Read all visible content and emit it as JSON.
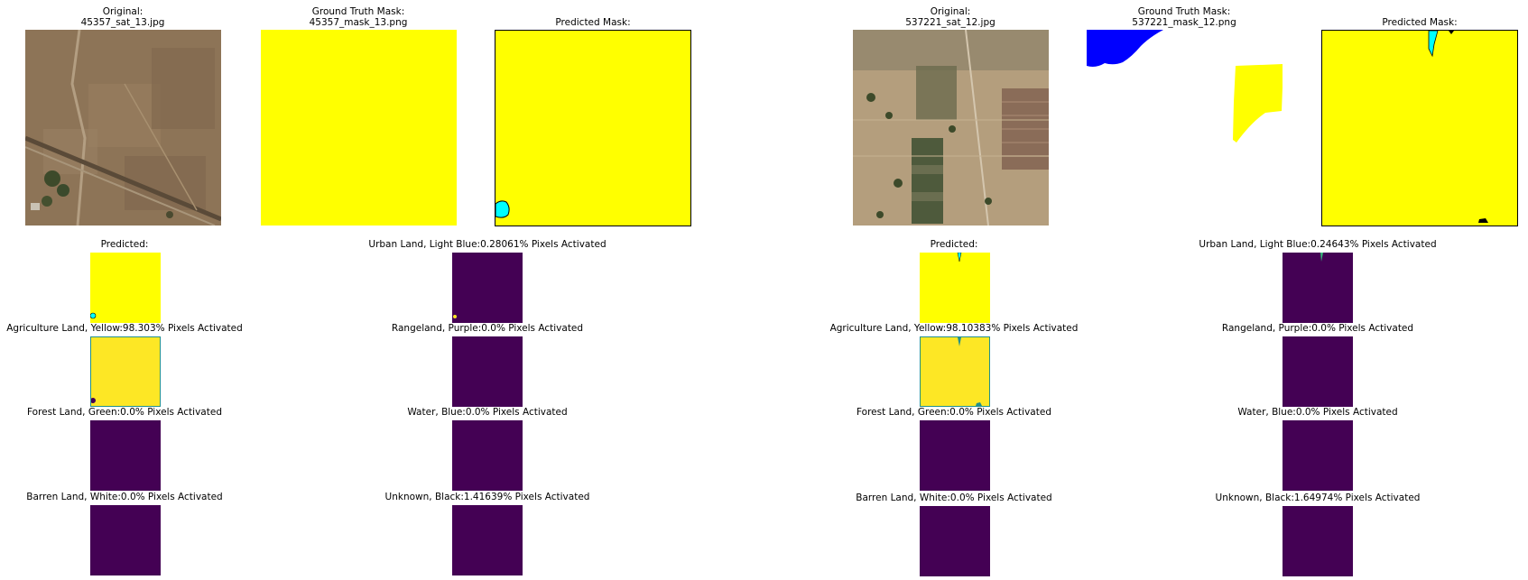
{
  "colors": {
    "agriculture": "#ffff00",
    "urban": "#00ffff",
    "water": "#0000ff",
    "viridis_low": "#440154",
    "viridis_high": "#fde725"
  },
  "left": {
    "original": {
      "title": "Original:",
      "file": "45357_sat_13.jpg"
    },
    "ground_truth": {
      "title": "Ground Truth Mask:",
      "file": "45357_mask_13.png"
    },
    "predicted_mask": {
      "title": "Predicted Mask:"
    },
    "predicted_small": {
      "title": "Predicted:"
    },
    "classes": {
      "urban": {
        "label": "Urban Land, Light Blue:0.28061% Pixels Activated",
        "activated_percent": 0.28061
      },
      "agriculture": {
        "label": "Agriculture Land, Yellow:98.303% Pixels Activated",
        "activated_percent": 98.303
      },
      "rangeland": {
        "label": "Rangeland, Purple:0.0% Pixels Activated",
        "activated_percent": 0.0
      },
      "forest": {
        "label": "Forest Land, Green:0.0% Pixels Activated",
        "activated_percent": 0.0
      },
      "water": {
        "label": "Water, Blue:0.0% Pixels Activated",
        "activated_percent": 0.0
      },
      "barren": {
        "label": "Barren Land, White:0.0% Pixels Activated",
        "activated_percent": 0.0
      },
      "unknown": {
        "label": "Unknown, Black:1.41639% Pixels Activated",
        "activated_percent": 1.41639
      }
    }
  },
  "right": {
    "original": {
      "title": "Original:",
      "file": "537221_sat_12.jpg"
    },
    "ground_truth": {
      "title": "Ground Truth Mask:",
      "file": "537221_mask_12.png"
    },
    "predicted_mask": {
      "title": "Predicted Mask:"
    },
    "predicted_small": {
      "title": "Predicted:"
    },
    "classes": {
      "urban": {
        "label": "Urban Land, Light Blue:0.24643% Pixels Activated",
        "activated_percent": 0.24643
      },
      "agriculture": {
        "label": "Agriculture Land, Yellow:98.10383% Pixels Activated",
        "activated_percent": 98.10383
      },
      "rangeland": {
        "label": "Rangeland, Purple:0.0% Pixels Activated",
        "activated_percent": 0.0
      },
      "forest": {
        "label": "Forest Land, Green:0.0% Pixels Activated",
        "activated_percent": 0.0
      },
      "water": {
        "label": "Water, Blue:0.0% Pixels Activated",
        "activated_percent": 0.0
      },
      "barren": {
        "label": "Barren Land, White:0.0% Pixels Activated",
        "activated_percent": 0.0
      },
      "unknown": {
        "label": "Unknown, Black:1.64974% Pixels Activated",
        "activated_percent": 1.64974
      }
    }
  }
}
